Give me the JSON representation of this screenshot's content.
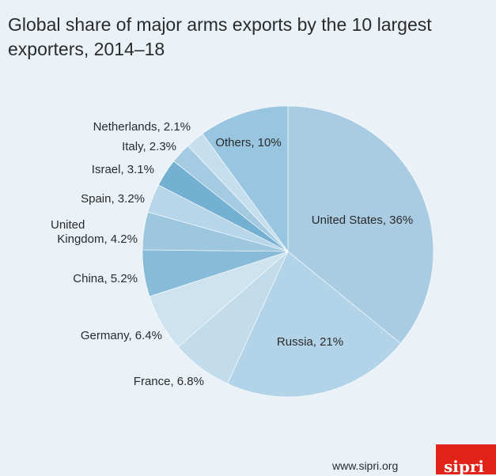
{
  "chart_data": {
    "type": "pie",
    "title": "Global share of major arms exports by the 10 largest exporters, 2014–18",
    "slices": [
      {
        "label": "United States, 36%",
        "value": 36,
        "color": "#a9cce3"
      },
      {
        "label": "Russia, 21%",
        "value": 21,
        "color": "#b3d4e8"
      },
      {
        "label": "France, 6.8%",
        "value": 6.8,
        "color": "#c2dcec"
      },
      {
        "label": "Germany, 6.4%",
        "value": 6.4,
        "color": "#cde3f0"
      },
      {
        "label": "China, 5.2%",
        "value": 5.2,
        "color": "#87bbd8"
      },
      {
        "label": "United Kingdom, 4.2%",
        "value": 4.2,
        "color": "#9cc7df"
      },
      {
        "label": "Spain, 3.2%",
        "value": 3.2,
        "color": "#b8d6e9"
      },
      {
        "label": "Israel, 3.1%",
        "value": 3.1,
        "color": "#74b0d2"
      },
      {
        "label": "Italy, 2.3%",
        "value": 2.3,
        "color": "#a4cbe1"
      },
      {
        "label": "Netherlands, 2.1%",
        "value": 2.1,
        "color": "#c6dfee"
      },
      {
        "label": "Others, 10%",
        "value": 10,
        "color": "#98c5df"
      }
    ]
  },
  "footer": {
    "source": "www.sipri.org",
    "logo_text": "sipri"
  }
}
